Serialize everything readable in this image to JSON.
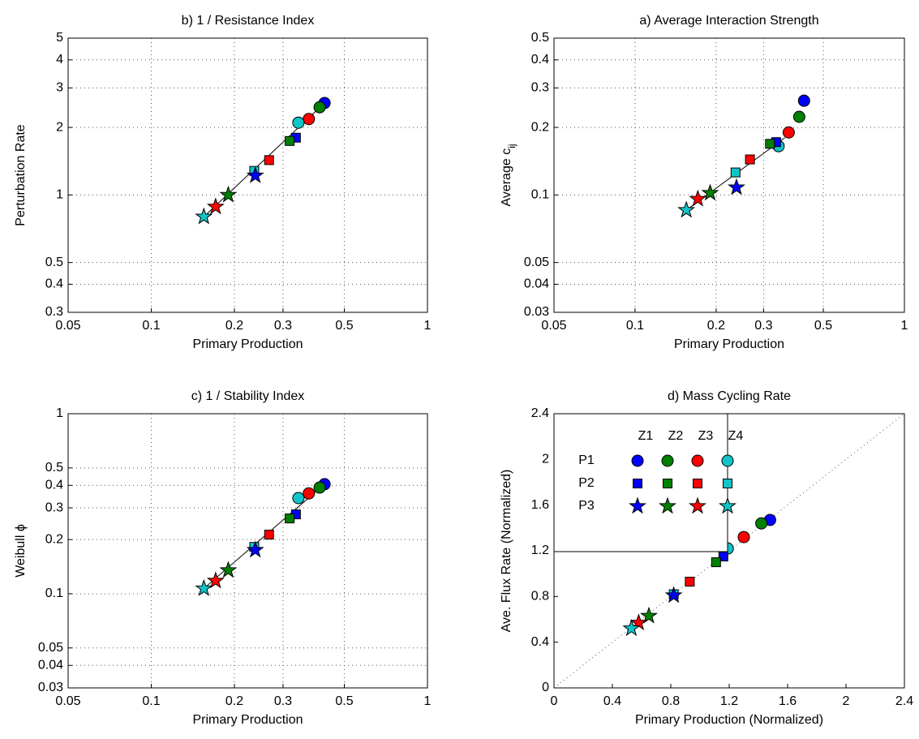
{
  "chart_data": [
    {
      "type": "scatter",
      "title": "b) 1 / Resistance Index",
      "xlabel": "Primary Production",
      "ylabel": "Perturbation Rate",
      "xscale": "log",
      "yscale": "log",
      "grid": true,
      "xlim": [
        0.05,
        1
      ],
      "ylim": [
        0.3,
        5
      ],
      "xticks": [
        0.05,
        0.1,
        0.2,
        0.3,
        0.5,
        1
      ],
      "yticks": [
        0.3,
        0.4,
        0.5,
        1,
        2,
        3,
        4,
        5
      ],
      "colors": [
        "#0000ff",
        "#008000",
        "#ff0000",
        "#11c4c8"
      ],
      "series": [
        {
          "marker": "circle",
          "x": [
            0.424,
            0.407,
            0.372,
            0.341
          ],
          "values": [
            2.57,
            2.46,
            2.18,
            2.1
          ]
        },
        {
          "marker": "square",
          "x": [
            0.334,
            0.317,
            0.267,
            0.236
          ],
          "values": [
            1.8,
            1.74,
            1.43,
            1.28
          ]
        },
        {
          "marker": "star",
          "x": [
            0.238,
            0.19,
            0.171,
            0.155
          ],
          "values": [
            1.22,
            1.0,
            0.886,
            0.8
          ]
        }
      ],
      "fit": {
        "x": [
          0.155,
          0.424
        ],
        "values": [
          0.8,
          2.57
        ]
      }
    },
    {
      "type": "scatter",
      "title": "a) Average Interaction Strength",
      "xlabel": "Primary Production",
      "ylabel": "Average c",
      "ylabel_sub": "ij",
      "xscale": "log",
      "yscale": "log",
      "grid": true,
      "xlim": [
        0.05,
        1
      ],
      "ylim": [
        0.03,
        0.5
      ],
      "xticks": [
        0.05,
        0.1,
        0.2,
        0.3,
        0.5,
        1
      ],
      "yticks": [
        0.03,
        0.04,
        0.05,
        0.1,
        0.2,
        0.3,
        0.4,
        0.5
      ],
      "colors": [
        "#0000ff",
        "#008000",
        "#ff0000",
        "#11c4c8"
      ],
      "series": [
        {
          "marker": "circle",
          "x": [
            0.424,
            0.407,
            0.372,
            0.341
          ],
          "values": [
            0.263,
            0.223,
            0.19,
            0.165
          ]
        },
        {
          "marker": "square",
          "x": [
            0.334,
            0.317,
            0.267,
            0.236
          ],
          "values": [
            0.172,
            0.169,
            0.144,
            0.126
          ]
        },
        {
          "marker": "star",
          "x": [
            0.238,
            0.19,
            0.171,
            0.155
          ],
          "values": [
            0.108,
            0.102,
            0.096,
            0.0856
          ]
        }
      ],
      "fit": {
        "x": [
          0.155,
          0.36
        ],
        "values": [
          0.0856,
          0.18
        ]
      }
    },
    {
      "type": "scatter",
      "title": "c) 1 / Stability Index",
      "xlabel": "Primary Production",
      "ylabel": "Weibull ϕ",
      "xscale": "log",
      "yscale": "log",
      "grid": true,
      "xlim": [
        0.05,
        1
      ],
      "ylim": [
        0.03,
        1
      ],
      "xticks": [
        0.05,
        0.1,
        0.2,
        0.3,
        0.5,
        1
      ],
      "yticks": [
        0.03,
        0.04,
        0.05,
        0.1,
        0.2,
        0.3,
        0.4,
        0.5,
        1
      ],
      "colors": [
        "#0000ff",
        "#008000",
        "#ff0000",
        "#11c4c8"
      ],
      "series": [
        {
          "marker": "circle",
          "x": [
            0.424,
            0.407,
            0.372,
            0.341
          ],
          "values": [
            0.406,
            0.389,
            0.361,
            0.34
          ]
        },
        {
          "marker": "square",
          "x": [
            0.334,
            0.317,
            0.267,
            0.236
          ],
          "values": [
            0.276,
            0.262,
            0.213,
            0.182
          ]
        },
        {
          "marker": "star",
          "x": [
            0.238,
            0.19,
            0.171,
            0.155
          ],
          "values": [
            0.175,
            0.135,
            0.118,
            0.107
          ]
        }
      ],
      "fit": {
        "x": [
          0.155,
          0.424
        ],
        "values": [
          0.107,
          0.406
        ]
      }
    },
    {
      "type": "scatter",
      "title": "d) Mass Cycling Rate",
      "xlabel": "Primary Production (Normalized)",
      "ylabel": "Ave. Flux Rate (Normalized)",
      "xscale": "linear",
      "yscale": "linear",
      "grid": false,
      "diagonal": true,
      "xlim": [
        0,
        2.4
      ],
      "ylim": [
        0,
        2.4
      ],
      "xticks": [
        0,
        0.4,
        0.8,
        1.2,
        1.6,
        2,
        2.4
      ],
      "yticks": [
        0,
        0.4,
        0.8,
        1.2,
        1.6,
        2,
        2.4
      ],
      "colors": [
        "#0000ff",
        "#008000",
        "#ff0000",
        "#11c4c8"
      ],
      "legend": {
        "position": "upper left",
        "columns": [
          "Z1",
          "Z2",
          "Z3",
          "Z4"
        ]
      },
      "series": [
        {
          "name": "P1",
          "marker": "circle",
          "x": [
            1.48,
            1.42,
            1.3,
            1.19
          ],
          "values": [
            1.47,
            1.44,
            1.32,
            1.22
          ]
        },
        {
          "name": "P2",
          "marker": "square",
          "x": [
            1.16,
            1.11,
            0.93,
            0.82
          ],
          "values": [
            1.15,
            1.1,
            0.93,
            0.82
          ]
        },
        {
          "name": "P3",
          "marker": "star",
          "x": [
            0.82,
            0.65,
            0.58,
            0.53
          ],
          "values": [
            0.81,
            0.63,
            0.57,
            0.52
          ]
        }
      ]
    }
  ]
}
